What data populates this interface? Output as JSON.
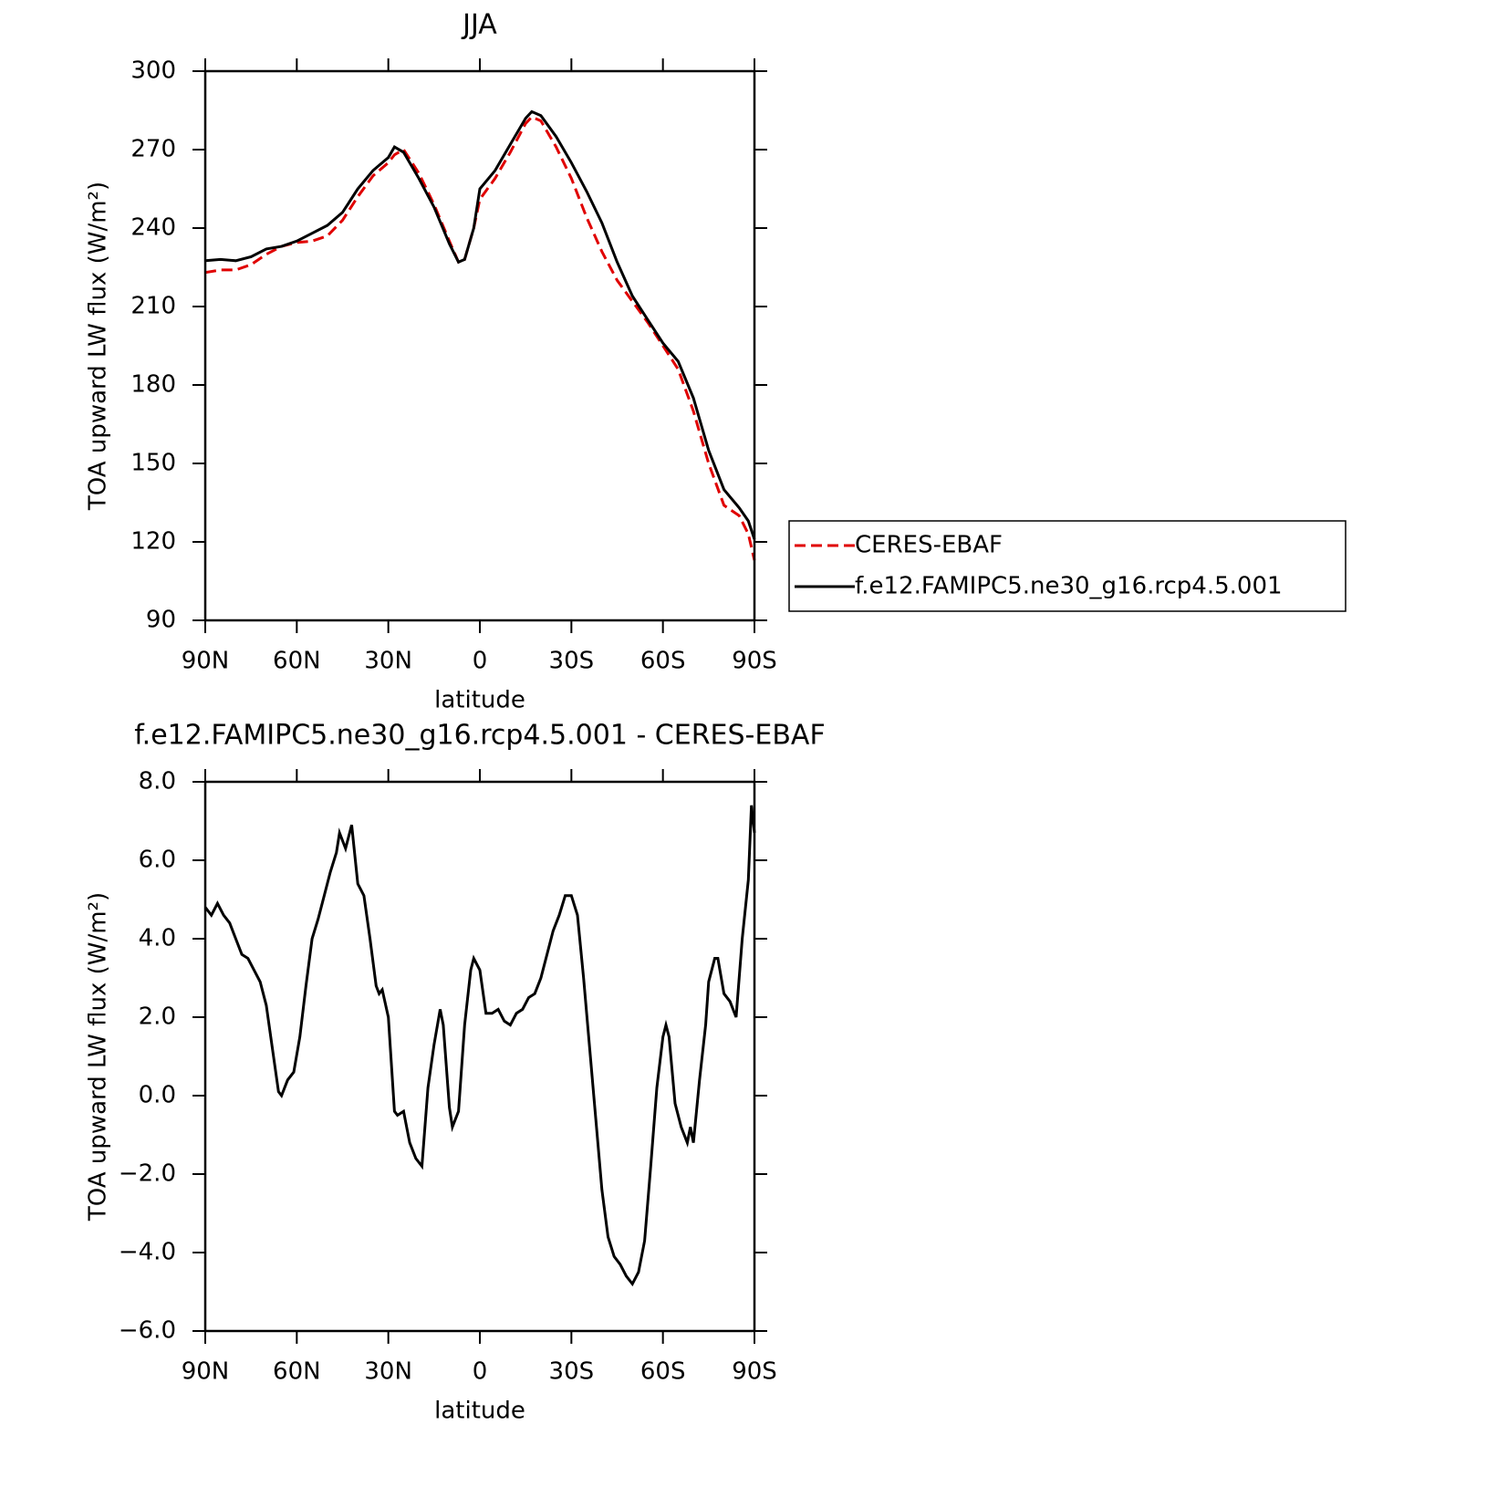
{
  "chart_data": [
    {
      "type": "line",
      "title": "JJA",
      "xlabel": "latitude",
      "ylabel": "TOA upward LW flux (W/m²)",
      "xlim": [
        90,
        -90
      ],
      "xticks": [
        {
          "value": 90,
          "label": "90N"
        },
        {
          "value": 60,
          "label": "60N"
        },
        {
          "value": 30,
          "label": "30N"
        },
        0,
        {
          "value": -30,
          "label": "30S"
        },
        {
          "value": -60,
          "label": "60S"
        },
        {
          "value": -90,
          "label": "90S"
        }
      ],
      "ylim": [
        90,
        300
      ],
      "yticks": [
        90,
        120,
        150,
        180,
        210,
        240,
        270,
        300
      ],
      "legend": "right",
      "x": [
        90,
        85,
        80,
        75,
        70,
        65,
        60,
        55,
        50,
        45,
        40,
        35,
        30,
        28,
        25,
        20,
        15,
        10,
        7,
        5,
        2,
        0,
        -5,
        -10,
        -15,
        -17,
        -20,
        -25,
        -30,
        -35,
        -40,
        -45,
        -50,
        -55,
        -60,
        -65,
        -70,
        -75,
        -80,
        -85,
        -88,
        -90
      ],
      "series": [
        {
          "name": "CERES-EBAF",
          "color": "#e00000",
          "dash": true,
          "values": [
            223,
            224,
            224,
            226,
            230,
            233,
            234.5,
            235,
            237,
            243,
            252,
            260,
            265,
            268,
            270,
            261,
            249,
            235,
            227,
            228,
            240,
            251,
            259,
            269,
            280,
            282.5,
            281,
            271,
            259,
            244,
            231,
            220,
            212,
            204,
            195,
            186,
            170,
            150,
            134,
            130,
            123,
            113
          ]
        },
        {
          "name": "f.e12.FAMIPC5.ne30_g16.rcp4.5.001",
          "color": "#000000",
          "dash": false,
          "values": [
            227.5,
            228,
            227.5,
            229,
            232,
            233,
            235,
            238,
            241,
            246,
            255,
            262,
            267,
            271,
            269,
            259,
            248,
            234,
            227,
            228,
            240,
            255,
            262,
            272,
            282,
            284.5,
            283,
            275,
            265,
            254,
            242,
            227,
            214,
            205,
            196,
            189,
            175,
            155,
            140,
            133,
            128,
            121
          ]
        }
      ]
    },
    {
      "type": "line",
      "title": "f.e12.FAMIPC5.ne30_g16.rcp4.5.001 - CERES-EBAF",
      "xlabel": "latitude",
      "ylabel": "TOA upward LW flux (W/m²)",
      "xlim": [
        90,
        -90
      ],
      "xticks": [
        {
          "value": 90,
          "label": "90N"
        },
        {
          "value": 60,
          "label": "60N"
        },
        {
          "value": 30,
          "label": "30N"
        },
        0,
        {
          "value": -30,
          "label": "30S"
        },
        {
          "value": -60,
          "label": "60S"
        },
        {
          "value": -90,
          "label": "90S"
        }
      ],
      "ylim": [
        -6,
        8
      ],
      "yticks": [
        {
          "value": -6,
          "label": "−6.0"
        },
        {
          "value": -4,
          "label": "−4.0"
        },
        {
          "value": -2,
          "label": "−2.0"
        },
        {
          "value": 0,
          "label": "0.0"
        },
        {
          "value": 2,
          "label": "2.0"
        },
        {
          "value": 4,
          "label": "4.0"
        },
        {
          "value": 6,
          "label": "6.0"
        },
        {
          "value": 8,
          "label": "8.0"
        }
      ],
      "color": "#000000",
      "x": [
        90,
        88,
        86,
        84,
        82,
        80,
        78,
        76,
        74,
        72,
        70,
        68,
        66,
        65,
        63,
        61,
        59,
        57,
        55,
        53,
        51,
        49,
        47,
        46,
        44,
        42,
        40,
        38,
        36,
        34,
        33,
        32,
        30,
        28,
        27,
        25,
        23,
        21,
        19,
        17,
        15,
        13,
        12,
        10,
        9,
        7,
        5,
        3,
        2,
        0,
        -2,
        -4,
        -6,
        -8,
        -10,
        -12,
        -14,
        -16,
        -18,
        -20,
        -22,
        -24,
        -26,
        -28,
        -30,
        -32,
        -34,
        -36,
        -38,
        -40,
        -42,
        -44,
        -46,
        -48,
        -50,
        -52,
        -54,
        -56,
        -58,
        -60,
        -61,
        -62,
        -64,
        -66,
        -68,
        -69,
        -70,
        -72,
        -74,
        -75,
        -77,
        -78,
        -80,
        -82,
        -84,
        -86,
        -88,
        -89,
        -90
      ],
      "values": [
        4.8,
        4.6,
        4.9,
        4.6,
        4.4,
        4.0,
        3.6,
        3.5,
        3.2,
        2.9,
        2.3,
        1.2,
        0.1,
        0.0,
        0.4,
        0.6,
        1.5,
        2.8,
        4.0,
        4.5,
        5.1,
        5.7,
        6.2,
        6.7,
        6.3,
        6.9,
        5.4,
        5.1,
        4.0,
        2.8,
        2.6,
        2.7,
        2.0,
        -0.4,
        -0.5,
        -0.4,
        -1.2,
        -1.6,
        -1.8,
        0.2,
        1.3,
        2.2,
        1.8,
        -0.3,
        -0.8,
        -0.4,
        1.8,
        3.2,
        3.5,
        3.2,
        2.1,
        2.1,
        2.2,
        1.9,
        1.8,
        2.1,
        2.2,
        2.5,
        2.6,
        3.0,
        3.6,
        4.2,
        4.6,
        5.1,
        5.1,
        4.6,
        3.0,
        1.2,
        -0.6,
        -2.4,
        -3.6,
        -4.1,
        -4.3,
        -4.6,
        -4.8,
        -4.5,
        -3.7,
        -1.8,
        0.2,
        1.5,
        1.8,
        1.5,
        -0.2,
        -0.8,
        -1.2,
        -0.8,
        -1.2,
        0.4,
        1.8,
        2.9,
        3.5,
        3.5,
        2.6,
        2.4,
        2.0,
        4.0,
        5.5,
        7.4,
        6.7
      ]
    }
  ]
}
